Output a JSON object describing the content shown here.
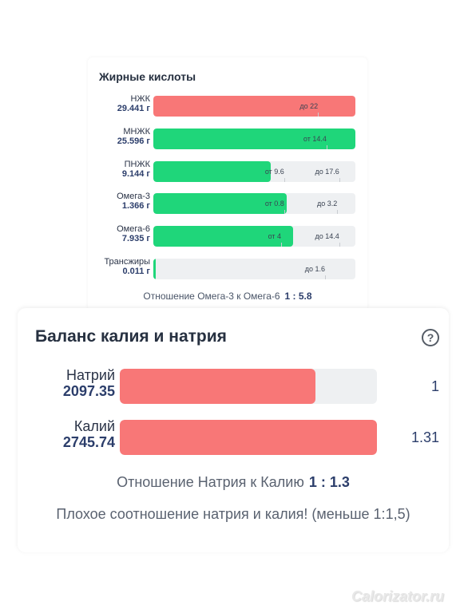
{
  "colors": {
    "over_limit": "#f87777",
    "ok": "#1fd67a",
    "track": "#eef0f2",
    "value_text": "#2c3e6b"
  },
  "fatty_acids": {
    "title": "Жирные кислоты",
    "rows": [
      {
        "name": "НЖК",
        "value": "29.441 г",
        "fill_pct": 100,
        "status": "over_limit",
        "markers": [
          {
            "text": "до 22",
            "pos_pct": 77
          }
        ]
      },
      {
        "name": "МНЖК",
        "value": "25.596 г",
        "fill_pct": 100,
        "status": "ok",
        "markers": [
          {
            "text": "от 14.4",
            "pos_pct": 80
          }
        ]
      },
      {
        "name": "ПНЖК",
        "value": "9.144 г",
        "fill_pct": 58,
        "status": "ok",
        "markers": [
          {
            "text": "от 9.6",
            "pos_pct": 60
          },
          {
            "text": "до 17.6",
            "pos_pct": 86
          }
        ]
      },
      {
        "name": "Омега-3",
        "value": "1.366 г",
        "fill_pct": 66,
        "status": "ok",
        "markers": [
          {
            "text": "от 0.8",
            "pos_pct": 60
          },
          {
            "text": "до 3.2",
            "pos_pct": 86
          }
        ]
      },
      {
        "name": "Омега-6",
        "value": "7.935 г",
        "fill_pct": 69,
        "status": "ok",
        "markers": [
          {
            "text": "от 4",
            "pos_pct": 60
          },
          {
            "text": "до 14.4",
            "pos_pct": 86
          }
        ]
      },
      {
        "name": "Трансжиры",
        "value": "0.011 г",
        "fill_pct": 1,
        "status": "ok",
        "markers": [
          {
            "text": "до 1.6",
            "pos_pct": 80
          }
        ]
      }
    ],
    "ratio_label": "Отношение Омега-3 к Омега-6",
    "ratio_value": "1 : 5.8"
  },
  "potassium_sodium": {
    "title": "Баланс калия и натрия",
    "help_icon": "question-circle-icon",
    "help_glyph": "?",
    "rows": [
      {
        "name": "Натрий",
        "value": "2097.35",
        "factor": "1",
        "fill_pct": 76
      },
      {
        "name": "Калий",
        "value": "2745.74",
        "factor": "1.31",
        "fill_pct": 100
      }
    ],
    "ratio_label": "Отношение Натрия к Калию",
    "ratio_value": "1 : 1.3",
    "warning": "Плохое соотношение натрия и калия! (меньше 1:1,5)"
  },
  "watermark": "Calorizator.ru"
}
